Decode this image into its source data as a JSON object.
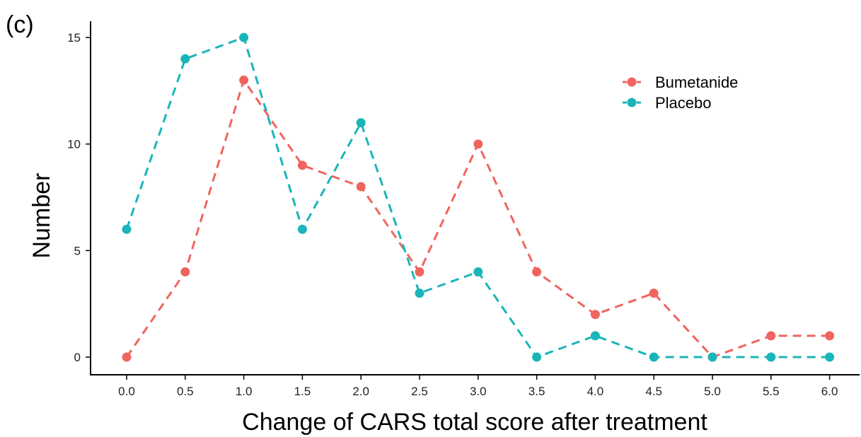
{
  "panel_label": "(c)",
  "colors": {
    "Bumetanide": "#F0645F",
    "Placebo": "#19B5B8"
  },
  "chart_data": {
    "type": "line",
    "title": "",
    "xlabel": "Change of CARS total score after treatment",
    "ylabel": "Number",
    "x": [
      0.0,
      0.5,
      1.0,
      1.5,
      2.0,
      2.5,
      3.0,
      3.5,
      4.0,
      4.5,
      5.0,
      5.5,
      6.0
    ],
    "x_tick_labels": [
      "0.0",
      "0.5",
      "1.0",
      "1.5",
      "2.0",
      "2.5",
      "3.0",
      "3.5",
      "4.0",
      "4.5",
      "5.0",
      "5.5",
      "6.0"
    ],
    "y_ticks": [
      0,
      5,
      10,
      15
    ],
    "y_tick_labels": [
      "0",
      "5",
      "10",
      "15"
    ],
    "xlim": [
      -0.3,
      6.3
    ],
    "ylim": [
      -0.8,
      16.5
    ],
    "grid": false,
    "line_style": "dashed",
    "legend_position": "top-right",
    "series": [
      {
        "name": "Bumetanide",
        "values": [
          0,
          4,
          13,
          9,
          8,
          4,
          10,
          4,
          2,
          3,
          0,
          1,
          1
        ]
      },
      {
        "name": "Placebo",
        "values": [
          6,
          14,
          15,
          6,
          11,
          3,
          4,
          0,
          1,
          0,
          0,
          0,
          0
        ]
      }
    ]
  }
}
